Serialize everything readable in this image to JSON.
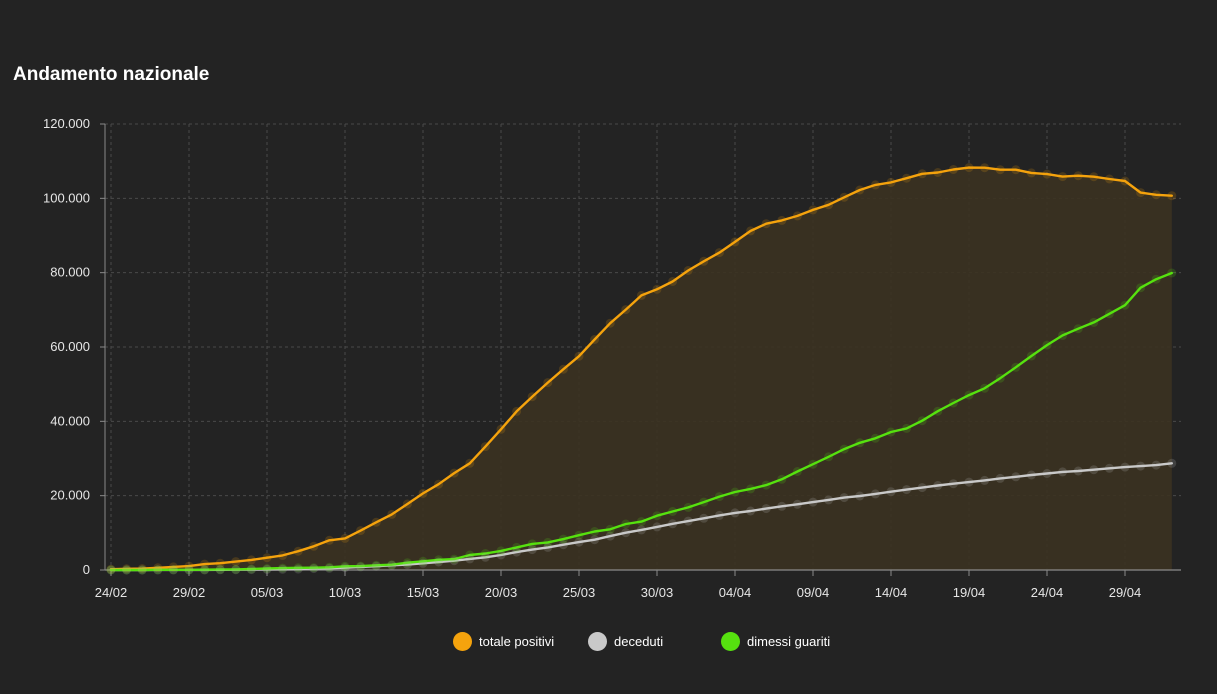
{
  "colors": {
    "background": "#232323",
    "grid": "#4a4a4a",
    "axis": "#8a8a8a",
    "positivi": "#f5a30d",
    "positivi_area": "#3b3222",
    "deceduti": "#c9c9c9",
    "guariti": "#56e10f"
  },
  "chart_data": {
    "type": "line",
    "title": "Andamento nazionale",
    "ylim": [
      0,
      120000
    ],
    "y_ticks": [
      0,
      20000,
      40000,
      60000,
      80000,
      100000,
      120000
    ],
    "y_tick_labels": [
      "0",
      "20.000",
      "40.000",
      "60.000",
      "80.000",
      "100.000",
      "120.000"
    ],
    "x_tick_labels": [
      "24/02",
      "29/02",
      "05/03",
      "10/03",
      "15/03",
      "20/03",
      "25/03",
      "30/03",
      "04/04",
      "09/04",
      "14/04",
      "19/04",
      "24/04",
      "29/04"
    ],
    "x_tick_step_days": 5,
    "grid": true,
    "legend_position": "bottom-center",
    "series": [
      {
        "name": "totale positivi",
        "color": "#f5a30d",
        "filled": true,
        "values": [
          221,
          311,
          385,
          588,
          821,
          1049,
          1577,
          1835,
          2263,
          2706,
          3296,
          3916,
          5061,
          6387,
          7985,
          8514,
          10590,
          12839,
          14955,
          17750,
          20603,
          23073,
          26062,
          28710,
          33190,
          37860,
          42681,
          46638,
          50418,
          54030,
          57521,
          62013,
          66414,
          70065,
          73880,
          75528,
          77635,
          80572,
          83049,
          85388,
          88274,
          91246,
          93187,
          94067,
          95262,
          96877,
          98273,
          100269,
          102253,
          103616,
          104291,
          105418,
          106607,
          106962,
          107771,
          108257,
          108237,
          107709,
          107699,
          106848,
          106527,
          105847,
          106103,
          105813,
          105205,
          104657,
          101551,
          100943,
          100704
        ]
      },
      {
        "name": "deceduti",
        "color": "#c9c9c9",
        "filled": false,
        "values": [
          7,
          10,
          12,
          17,
          21,
          29,
          34,
          52,
          79,
          107,
          148,
          197,
          233,
          366,
          463,
          631,
          827,
          1016,
          1266,
          1441,
          1809,
          2158,
          2503,
          2978,
          3405,
          4032,
          4825,
          5476,
          6077,
          6820,
          7503,
          8165,
          9134,
          10023,
          10779,
          11591,
          12428,
          13155,
          13915,
          14681,
          15362,
          15887,
          16523,
          17127,
          17669,
          18279,
          18849,
          19468,
          19899,
          20465,
          21067,
          21645,
          22170,
          22745,
          23227,
          23660,
          24114,
          24648,
          25085,
          25549,
          25969,
          26384,
          26644,
          26977,
          27359,
          27682,
          27967,
          28236,
          28710
        ]
      },
      {
        "name": "dimessi guariti",
        "color": "#56e10f",
        "filled": false,
        "values": [
          1,
          1,
          3,
          45,
          46,
          50,
          83,
          149,
          160,
          276,
          414,
          523,
          589,
          622,
          724,
          1004,
          1045,
          1258,
          1439,
          1966,
          2335,
          2749,
          2941,
          4025,
          4440,
          5129,
          6072,
          7024,
          7432,
          8326,
          9362,
          10361,
          10950,
          12384,
          13030,
          14620,
          15729,
          16847,
          18278,
          19758,
          20996,
          21815,
          22837,
          24392,
          26491,
          28470,
          30455,
          32534,
          34211,
          35435,
          37130,
          38092,
          40164,
          42727,
          44927,
          47055,
          48877,
          51600,
          54543,
          57576,
          60498,
          63120,
          64928,
          66624,
          68941,
          71252,
          75945,
          78249,
          79914
        ]
      }
    ]
  },
  "legend": {
    "items": [
      {
        "label": "totale positivi",
        "color": "#f5a30d"
      },
      {
        "label": "deceduti",
        "color": "#c9c9c9"
      },
      {
        "label": "dimessi guariti",
        "color": "#56e10f"
      }
    ]
  }
}
